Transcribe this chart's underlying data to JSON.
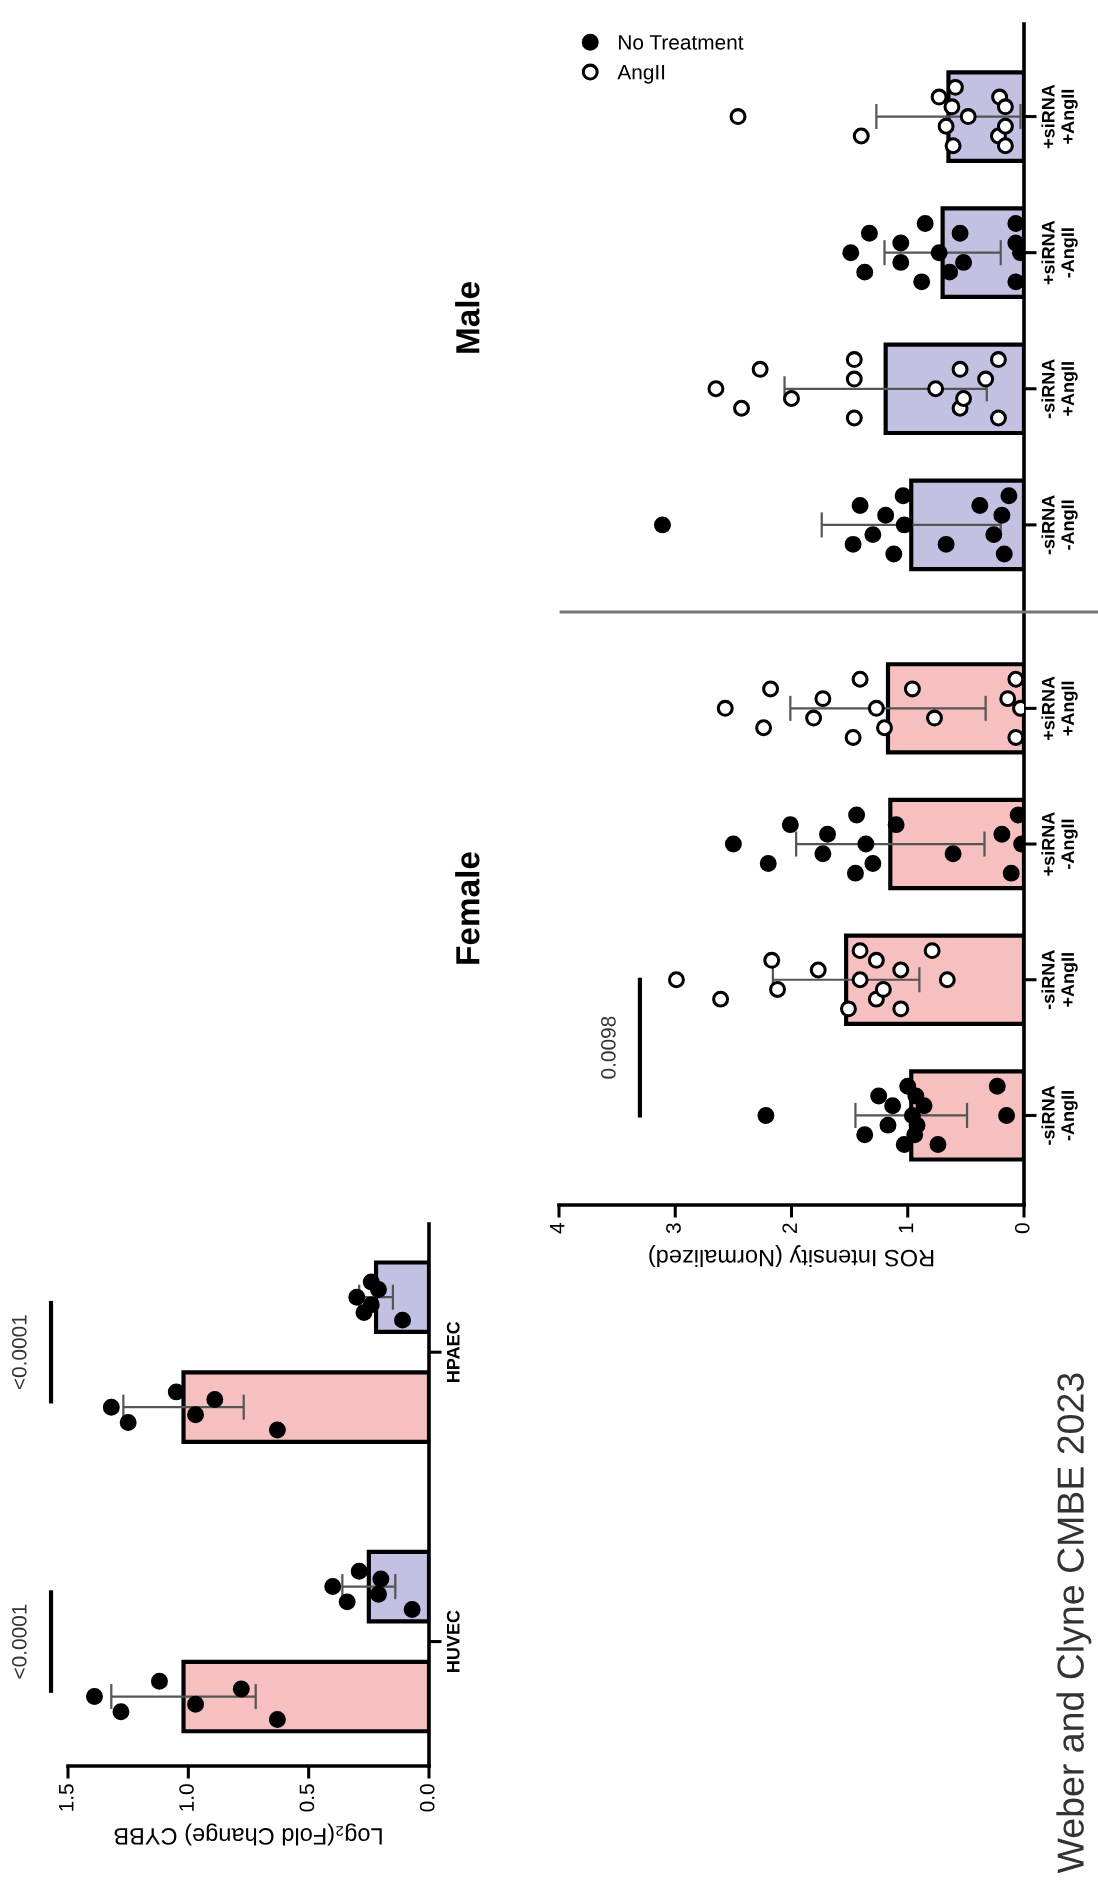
{
  "chart_data": [
    {
      "type": "bar",
      "orientation": "horizontal",
      "xlabel": "Log₂(Fold Change) CYBB",
      "categories": [
        "HPAEC",
        "HUVEC"
      ],
      "xlim": [
        1.5,
        0.0
      ],
      "xticks": [
        {
          "value": 1.5,
          "label": "1.5"
        },
        {
          "value": 1.0,
          "label": "1.0"
        },
        {
          "value": 0.5,
          "label": "0.5"
        },
        {
          "value": 0.0,
          "label": "0.0"
        }
      ],
      "series": [
        {
          "color": "#f6c0c0",
          "values": [
            1.02,
            1.02
          ],
          "errors": [
            0.25,
            0.3
          ]
        },
        {
          "color": "#c3c1e2",
          "values": [
            0.22,
            0.25
          ],
          "errors": [
            0.07,
            0.11
          ]
        },
        {
          "type": "scatter",
          "marker": "circle",
          "color": "#000000",
          "x": [
            "HPAEC",
            "HPAEC",
            "HPAEC",
            "HPAEC",
            "HPAEC",
            "HPAEC",
            "HUVEC",
            "HUVEC",
            "HUVEC",
            "HUVEC",
            "HUVEC",
            "HUVEC"
          ],
          "values": [
            1.32,
            1.25,
            1.05,
            0.97,
            0.89,
            0.63,
            1.39,
            1.28,
            1.12,
            0.97,
            0.78,
            0.63
          ]
        },
        {
          "type": "scatter",
          "marker": "circle",
          "color": "#000000",
          "x": [
            "HPAEC",
            "HPAEC",
            "HPAEC",
            "HPAEC",
            "HPAEC",
            "HPAEC",
            "HUVEC",
            "HUVEC",
            "HUVEC",
            "HUVEC",
            "HUVEC",
            "HUVEC"
          ],
          "values": [
            0.3,
            0.27,
            0.24,
            0.24,
            0.21,
            0.11,
            0.4,
            0.34,
            0.29,
            0.21,
            0.2,
            0.07
          ]
        }
      ],
      "annotations": [
        "<0.0001",
        "<0.0001",
        "Weber and Clyne CMBE 2023"
      ]
    },
    {
      "type": "bar",
      "orientation": "horizontal",
      "title": "Female",
      "xlabel": "ROS Intensity (Normalized)",
      "categories": [
        "+siRNA\n+AngII",
        "+siRNA\n-AngII",
        "-siRNA\n+AngII",
        "-siRNA\n-AngII"
      ],
      "xlim": [
        4,
        0
      ],
      "xticks": [
        4,
        3,
        2,
        1,
        0
      ],
      "series": [
        {
          "color": "#f6c0c0",
          "values": [
            1.17,
            1.15,
            1.53,
            0.97
          ],
          "errors": [
            0.84,
            0.81,
            0.63,
            0.48
          ]
        },
        {
          "type": "scatter",
          "marker": "circle",
          "color": "#000000",
          "x": [
            "+siRNA\n-AngII",
            "+siRNA\n-AngII",
            "+siRNA\n-AngII",
            "+siRNA\n-AngII",
            "+siRNA\n-AngII",
            "+siRNA\n-AngII",
            "+siRNA\n-AngII",
            "+siRNA\n-AngII",
            "+siRNA\n-AngII",
            "+siRNA\n-AngII",
            "+siRNA\n-AngII",
            "+siRNA\n-AngII",
            "+siRNA\n-AngII",
            "+siRNA\n-AngII",
            "+siRNA\n-AngII",
            "-siRNA\n-AngII",
            "-siRNA\n-AngII",
            "-siRNA\n-AngII",
            "-siRNA\n-AngII",
            "-siRNA\n-AngII",
            "-siRNA\n-AngII",
            "-siRNA\n-AngII",
            "-siRNA\n-AngII",
            "-siRNA\n-AngII",
            "-siRNA\n-AngII",
            "-siRNA\n-AngII",
            "-siRNA\n-AngII",
            "-siRNA\n-AngII",
            "-siRNA\n-AngII",
            "-siRNA\n-AngII"
          ],
          "values": [
            2.5,
            2.2,
            2.01,
            1.73,
            1.69,
            1.45,
            1.44,
            1.36,
            1.3,
            1.1,
            0.61,
            0.19,
            0.11,
            0.05,
            0.02,
            2.22,
            1.37,
            1.25,
            1.17,
            1.13,
            1.03,
            1.0,
            0.96,
            0.94,
            0.93,
            0.92,
            0.86,
            0.74,
            0.23,
            0.15
          ]
        },
        {
          "type": "scatter",
          "marker": "circle",
          "color": "#ffffff",
          "x": [
            "+siRNA\n+AngII",
            "+siRNA\n+AngII",
            "+siRNA\n+AngII",
            "+siRNA\n+AngII",
            "+siRNA\n+AngII",
            "+siRNA\n+AngII",
            "+siRNA\n+AngII",
            "+siRNA\n+AngII",
            "+siRNA\n+AngII",
            "+siRNA\n+AngII",
            "+siRNA\n+AngII",
            "+siRNA\n+AngII",
            "+siRNA\n+AngII",
            "+siRNA\n+AngII",
            "+siRNA\n+AngII",
            "-siRNA\n+AngII",
            "-siRNA\n+AngII",
            "-siRNA\n+AngII",
            "-siRNA\n+AngII",
            "-siRNA\n+AngII",
            "-siRNA\n+AngII",
            "-siRNA\n+AngII",
            "-siRNA\n+AngII",
            "-siRNA\n+AngII",
            "-siRNA\n+AngII",
            "-siRNA\n+AngII",
            "-siRNA\n+AngII",
            "-siRNA\n+AngII",
            "-siRNA\n+AngII",
            "-siRNA\n+AngII"
          ],
          "values": [
            2.57,
            2.24,
            2.18,
            1.81,
            1.73,
            1.47,
            1.41,
            1.27,
            1.2,
            0.96,
            0.77,
            0.14,
            0.07,
            0.07,
            0.03,
            2.99,
            2.61,
            2.17,
            2.12,
            1.77,
            1.51,
            1.41,
            1.41,
            1.27,
            1.27,
            1.21,
            1.06,
            1.06,
            0.79,
            0.66
          ]
        }
      ],
      "annotations": [
        "0.0098"
      ]
    },
    {
      "type": "bar",
      "orientation": "horizontal",
      "title": "Male",
      "categories": [
        "+siRNA\n+AngII",
        "+siRNA\n-AngII",
        "-siRNA\n+AngII",
        "-siRNA\n-AngII"
      ],
      "xlim": [
        4,
        0
      ],
      "tick_labels": "y",
      "legend": "top left",
      "series": [
        {
          "color": "#c3c1e2",
          "values": [
            0.65,
            0.7,
            1.19,
            0.97
          ],
          "errors": [
            0.62,
            0.5,
            0.87,
            0.77
          ]
        },
        {
          "type": "scatter",
          "name": "No Treatment",
          "marker": "circle",
          "color": "#000000",
          "x": [
            "+siRNA\n-AngII",
            "+siRNA\n-AngII",
            "+siRNA\n-AngII",
            "+siRNA\n-AngII",
            "+siRNA\n-AngII",
            "+siRNA\n-AngII",
            "+siRNA\n-AngII",
            "+siRNA\n-AngII",
            "+siRNA\n-AngII",
            "+siRNA\n-AngII",
            "+siRNA\n-AngII",
            "+siRNA\n-AngII",
            "+siRNA\n-AngII",
            "+siRNA\n-AngII",
            "+siRNA\n-AngII",
            "-siRNA\n-AngII",
            "-siRNA\n-AngII",
            "-siRNA\n-AngII",
            "-siRNA\n-AngII",
            "-siRNA\n-AngII",
            "-siRNA\n-AngII",
            "-siRNA\n-AngII",
            "-siRNA\n-AngII",
            "-siRNA\n-AngII",
            "-siRNA\n-AngII",
            "-siRNA\n-AngII",
            "-siRNA\n-AngII",
            "-siRNA\n-AngII",
            "-siRNA\n-AngII"
          ],
          "values": [
            1.49,
            1.37,
            1.33,
            1.06,
            1.06,
            0.88,
            0.85,
            0.73,
            0.64,
            0.55,
            0.52,
            0.07,
            0.07,
            0.07,
            0.03,
            3.11,
            1.47,
            1.41,
            1.3,
            1.19,
            1.12,
            1.04,
            1.03,
            0.67,
            0.38,
            0.26,
            0.19,
            0.17,
            0.13
          ]
        },
        {
          "type": "scatter",
          "name": "AngII",
          "marker": "circle",
          "color": "#ffffff",
          "x": [
            "+siRNA\n+AngII",
            "+siRNA\n+AngII",
            "+siRNA\n+AngII",
            "+siRNA\n+AngII",
            "+siRNA\n+AngII",
            "+siRNA\n+AngII",
            "+siRNA\n+AngII",
            "+siRNA\n+AngII",
            "+siRNA\n+AngII",
            "+siRNA\n+AngII",
            "+siRNA\n+AngII",
            "+siRNA\n+AngII",
            "+siRNA\n+AngII",
            "-siRNA\n+AngII",
            "-siRNA\n+AngII",
            "-siRNA\n+AngII",
            "-siRNA\n+AngII",
            "-siRNA\n+AngII",
            "-siRNA\n+AngII",
            "-siRNA\n+AngII",
            "-siRNA\n+AngII",
            "-siRNA\n+AngII",
            "-siRNA\n+AngII",
            "-siRNA\n+AngII",
            "-siRNA\n+AngII",
            "-siRNA\n+AngII",
            "-siRNA\n+AngII"
          ],
          "values": [
            2.46,
            1.4,
            0.73,
            0.67,
            0.62,
            0.61,
            0.59,
            0.48,
            0.22,
            0.21,
            0.16,
            0.16,
            0.16,
            2.65,
            2.43,
            2.27,
            2.0,
            1.46,
            1.46,
            1.46,
            0.76,
            0.55,
            0.55,
            0.52,
            0.33,
            0.22,
            0.22
          ]
        }
      ]
    }
  ]
}
